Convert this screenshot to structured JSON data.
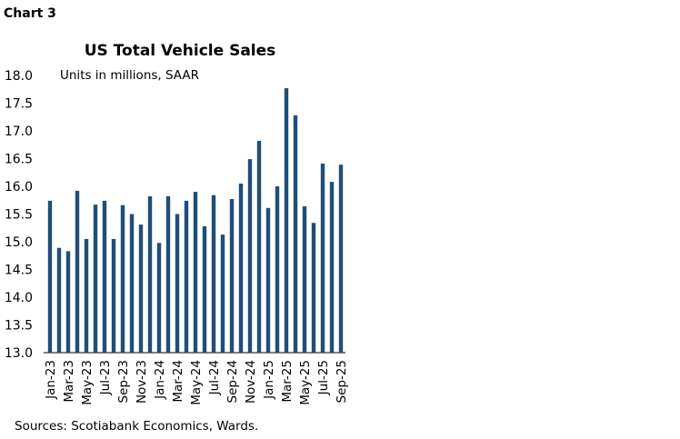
{
  "header": "Chart 3",
  "chart_data": {
    "type": "bar",
    "title": "US Total Vehicle Sales",
    "subtitle": "Units in millions, SAAR",
    "categories": [
      "Jan-23",
      null,
      "Mar-23",
      null,
      "May-23",
      null,
      "Jul-23",
      null,
      "Sep-23",
      null,
      "Nov-23",
      null,
      "Jan-24",
      null,
      "Mar-24",
      null,
      "May-24",
      null,
      "Jul-24",
      null,
      "Sep-24",
      null,
      "Nov-24",
      null,
      "Jan-25",
      null,
      "Mar-25",
      null,
      "May-25",
      null,
      "Jul-25",
      null,
      "Sep-25"
    ],
    "values": [
      15.74,
      14.89,
      14.83,
      15.92,
      15.05,
      15.67,
      15.74,
      15.05,
      15.66,
      15.5,
      15.31,
      15.82,
      14.98,
      15.82,
      15.5,
      15.74,
      15.9,
      15.28,
      15.84,
      15.13,
      15.77,
      16.05,
      16.49,
      16.82,
      15.61,
      16.0,
      17.77,
      17.28,
      15.64,
      15.34,
      16.41,
      16.08,
      16.39
    ],
    "color": "#1f4e79",
    "ylim": [
      13,
      18
    ],
    "yticks": [
      {
        "value": 13,
        "label": "13.0"
      },
      {
        "value": 13.5,
        "label": "13.5"
      },
      {
        "value": 14,
        "label": "14.0"
      },
      {
        "value": 14.5,
        "label": "14.5"
      },
      {
        "value": 15,
        "label": "15.0"
      },
      {
        "value": 15.5,
        "label": "15.5"
      },
      {
        "value": 16,
        "label": "16.0"
      },
      {
        "value": 16.5,
        "label": "16.5"
      },
      {
        "value": 17,
        "label": "17.0"
      },
      {
        "value": 17.5,
        "label": "17.5"
      },
      {
        "value": 18,
        "label": "18.0"
      }
    ],
    "grid": false
  },
  "footer": "Sources: Scotiabank Economics, Wards."
}
